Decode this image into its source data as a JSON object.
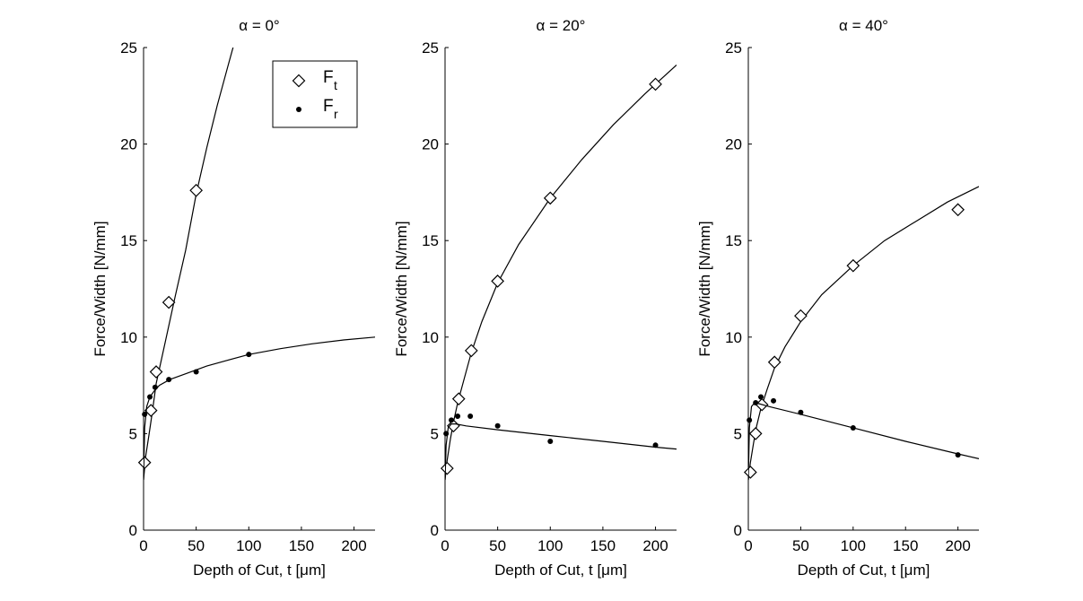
{
  "chart_data": [
    {
      "type": "scatter",
      "title": "α = 0°",
      "xlabel": "Depth of Cut, t [μm]",
      "ylabel": "Force/Width [N/mm]",
      "xlim": [
        0,
        220
      ],
      "ylim": [
        0,
        25
      ],
      "xticks": [
        0,
        50,
        100,
        150,
        200
      ],
      "yticks": [
        0,
        5,
        10,
        15,
        20,
        25
      ],
      "legend": {
        "placement": "top-right",
        "entries": [
          {
            "main": "F",
            "sub": "t",
            "marker": "open-diamond"
          },
          {
            "main": "F",
            "sub": "r",
            "marker": "filled-dot"
          }
        ]
      },
      "series": [
        {
          "name": "Ft",
          "marker": "open-diamond",
          "points": [
            [
              1,
              3.5
            ],
            [
              7,
              6.2
            ],
            [
              12,
              8.2
            ],
            [
              24,
              11.8
            ],
            [
              50,
              17.6
            ]
          ],
          "fit": [
            [
              0,
              2.6
            ],
            [
              2,
              3.8
            ],
            [
              5,
              4.9
            ],
            [
              8,
              6.0
            ],
            [
              12,
              7.6
            ],
            [
              20,
              9.6
            ],
            [
              30,
              12.1
            ],
            [
              40,
              14.5
            ],
            [
              50,
              17.4
            ],
            [
              60,
              19.8
            ],
            [
              70,
              22.0
            ],
            [
              80,
              24.0
            ],
            [
              86,
              25.2
            ]
          ]
        },
        {
          "name": "Fr",
          "marker": "filled-dot",
          "points": [
            [
              1,
              6.0
            ],
            [
              6,
              6.9
            ],
            [
              11,
              7.4
            ],
            [
              24,
              7.8
            ],
            [
              50,
              8.2
            ],
            [
              100,
              9.1
            ]
          ],
          "fit": [
            [
              0,
              2.6
            ],
            [
              1,
              5.3
            ],
            [
              3,
              6.4
            ],
            [
              6,
              6.9
            ],
            [
              10,
              7.2
            ],
            [
              15,
              7.5
            ],
            [
              25,
              7.8
            ],
            [
              40,
              8.1
            ],
            [
              60,
              8.5
            ],
            [
              80,
              8.8
            ],
            [
              100,
              9.1
            ],
            [
              130,
              9.4
            ],
            [
              160,
              9.65
            ],
            [
              190,
              9.85
            ],
            [
              220,
              10.0
            ]
          ]
        }
      ]
    },
    {
      "type": "scatter",
      "title": "α = 20°",
      "xlabel": "Depth of Cut, t [μm]",
      "ylabel": "Force/Width [N/mm]",
      "xlim": [
        0,
        220
      ],
      "ylim": [
        0,
        25
      ],
      "xticks": [
        0,
        50,
        100,
        150,
        200
      ],
      "yticks": [
        0,
        5,
        10,
        15,
        20,
        25
      ],
      "series": [
        {
          "name": "Ft",
          "marker": "open-diamond",
          "points": [
            [
              2,
              3.2
            ],
            [
              8,
              5.4
            ],
            [
              13,
              6.8
            ],
            [
              25,
              9.3
            ],
            [
              50,
              12.9
            ],
            [
              100,
              17.2
            ],
            [
              200,
              23.1
            ]
          ],
          "fit": [
            [
              0,
              2.6
            ],
            [
              2,
              3.6
            ],
            [
              5,
              4.7
            ],
            [
              8,
              5.6
            ],
            [
              12,
              6.6
            ],
            [
              18,
              7.8
            ],
            [
              25,
              9.2
            ],
            [
              35,
              10.8
            ],
            [
              50,
              12.8
            ],
            [
              70,
              14.8
            ],
            [
              100,
              17.2
            ],
            [
              130,
              19.2
            ],
            [
              160,
              21.0
            ],
            [
              190,
              22.6
            ],
            [
              220,
              24.1
            ]
          ]
        },
        {
          "name": "Fr",
          "marker": "filled-dot",
          "points": [
            [
              1,
              5.0
            ],
            [
              6,
              5.7
            ],
            [
              12,
              5.9
            ],
            [
              24,
              5.9
            ],
            [
              50,
              5.4
            ],
            [
              100,
              4.6
            ],
            [
              200,
              4.4
            ]
          ],
          "fit": [
            [
              0,
              2.6
            ],
            [
              1,
              4.4
            ],
            [
              3,
              5.3
            ],
            [
              6,
              5.5
            ],
            [
              10,
              5.5
            ],
            [
              20,
              5.4
            ],
            [
              50,
              5.2
            ],
            [
              100,
              4.9
            ],
            [
              150,
              4.6
            ],
            [
              200,
              4.3
            ],
            [
              220,
              4.2
            ]
          ]
        }
      ]
    },
    {
      "type": "scatter",
      "title": "α = 40°",
      "xlabel": "Depth of Cut, t [μm]",
      "ylabel": "Force/Width [N/mm]",
      "xlim": [
        0,
        220
      ],
      "ylim": [
        0,
        25
      ],
      "xticks": [
        0,
        50,
        100,
        150,
        200
      ],
      "yticks": [
        0,
        5,
        10,
        15,
        20,
        25
      ],
      "series": [
        {
          "name": "Ft",
          "marker": "open-diamond",
          "points": [
            [
              2,
              3.0
            ],
            [
              7,
              5.0
            ],
            [
              13,
              6.5
            ],
            [
              25,
              8.7
            ],
            [
              50,
              11.1
            ],
            [
              100,
              13.7
            ],
            [
              200,
              16.6
            ]
          ],
          "fit": [
            [
              0,
              2.6
            ],
            [
              2,
              3.5
            ],
            [
              5,
              4.5
            ],
            [
              8,
              5.4
            ],
            [
              12,
              6.3
            ],
            [
              18,
              7.3
            ],
            [
              25,
              8.4
            ],
            [
              35,
              9.5
            ],
            [
              50,
              10.8
            ],
            [
              70,
              12.2
            ],
            [
              100,
              13.7
            ],
            [
              130,
              15.0
            ],
            [
              160,
              16.0
            ],
            [
              190,
              17.0
            ],
            [
              220,
              17.8
            ]
          ]
        },
        {
          "name": "Fr",
          "marker": "filled-dot",
          "points": [
            [
              1,
              5.7
            ],
            [
              7,
              6.6
            ],
            [
              12,
              6.9
            ],
            [
              24,
              6.7
            ],
            [
              50,
              6.1
            ],
            [
              100,
              5.3
            ],
            [
              200,
              3.9
            ]
          ],
          "fit": [
            [
              0,
              2.6
            ],
            [
              1,
              5.3
            ],
            [
              3,
              6.4
            ],
            [
              6,
              6.6
            ],
            [
              10,
              6.55
            ],
            [
              20,
              6.4
            ],
            [
              50,
              6.0
            ],
            [
              100,
              5.3
            ],
            [
              150,
              4.6
            ],
            [
              200,
              3.95
            ],
            [
              220,
              3.7
            ]
          ]
        }
      ]
    }
  ]
}
